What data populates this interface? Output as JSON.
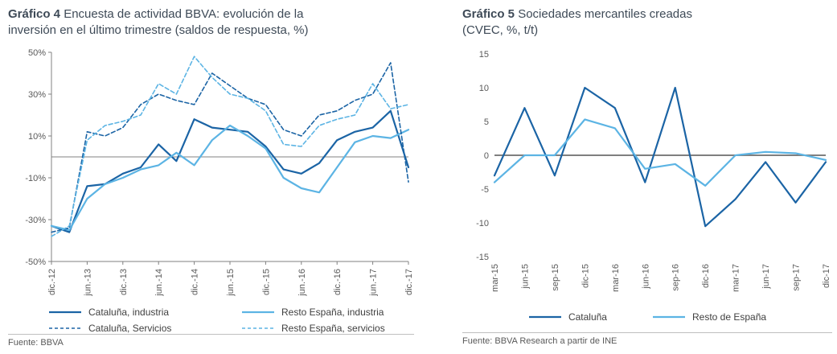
{
  "page": {
    "background": "#ffffff"
  },
  "colors": {
    "dark_blue": "#1b64a5",
    "light_blue": "#5cb4e4",
    "axis_label_gray": "#595959",
    "zero_line_gray": "#9b9b9b",
    "title_text": "#3e4a57"
  },
  "chart_data": [
    {
      "type": "line",
      "title": "Gráfico 4 Encuesta de actividad BBVA: evolución de la inversión en el último trimestre (saldos de respuesta, %)",
      "title_bold": "Gráfico 4",
      "title_rest": "Encuesta de actividad BBVA: evolución de la\ninversión en el último trimestre (saldos de respuesta, %)",
      "x": [
        "dic.-12",
        "mar.-13",
        "jun.-13",
        "sep.-13",
        "dic.-13",
        "mar.-14",
        "jun.-14",
        "sep.-14",
        "dic.-14",
        "mar.-15",
        "jun.-15",
        "sep.-15",
        "dic.-15",
        "mar.-16",
        "jun.-16",
        "sep.-16",
        "dic.-16",
        "mar.-17",
        "jun.-17",
        "sep.-17",
        "dic.-17"
      ],
      "x_labels_shown": [
        "dic.-12",
        "jun.-13",
        "dic.-13",
        "jun.-14",
        "dic.-14",
        "jun.-15",
        "dic.-15",
        "jun.-16",
        "dic.-16",
        "jun.-17",
        "dic.-17"
      ],
      "label_every": 2,
      "ylim": [
        -50,
        50
      ],
      "yticks": [
        50,
        30,
        10,
        -10,
        -30,
        -50
      ],
      "ytick_suffix": "%",
      "grid": "zero-line-only",
      "legend_position": "bottom",
      "series": [
        {
          "name": "Cataluña, industria",
          "color": "#1b64a5",
          "dash": false,
          "values": [
            -33,
            -36,
            -14,
            -13,
            -8,
            -5,
            6,
            -2,
            18,
            14,
            13,
            12,
            5,
            -6,
            -8,
            -3,
            8,
            12,
            14,
            22,
            -5
          ]
        },
        {
          "name": "Resto España, industria",
          "color": "#5cb4e4",
          "dash": false,
          "values": [
            -33,
            -35,
            -20,
            -13,
            -10,
            -6,
            -4,
            2,
            -4,
            8,
            15,
            10,
            4,
            -10,
            -15,
            -17,
            -5,
            7,
            10,
            9,
            13
          ]
        },
        {
          "name": "Cataluña, Servicios",
          "color": "#1b64a5",
          "dash": true,
          "values": [
            -36,
            -34,
            12,
            10,
            14,
            25,
            30,
            27,
            25,
            40,
            34,
            28,
            25,
            13,
            10,
            20,
            22,
            27,
            30,
            45,
            -12
          ]
        },
        {
          "name": "Resto España, servicios",
          "color": "#5cb4e4",
          "dash": true,
          "values": [
            -38,
            -33,
            8,
            15,
            17,
            20,
            35,
            30,
            48,
            38,
            30,
            28,
            22,
            6,
            5,
            15,
            18,
            20,
            35,
            23,
            25
          ]
        }
      ],
      "source": "Fuente: BBVA"
    },
    {
      "type": "line",
      "title": "Gráfico 5 Sociedades mercantiles creadas (CVEC, %, t/t)",
      "title_bold": "Gráfico 5",
      "title_rest": "Sociedades mercantiles creadas\n(CVEC, %, t/t)",
      "x": [
        "mar-15",
        "jun-15",
        "sep-15",
        "dic-15",
        "mar-16",
        "jun-16",
        "sep-16",
        "dic-16",
        "mar-17",
        "jun-17",
        "sep-17",
        "dic-17"
      ],
      "label_every": 1,
      "ylim": [
        -15,
        15
      ],
      "yticks": [
        15,
        10,
        5,
        0,
        -5,
        -10,
        -15
      ],
      "ytick_suffix": "",
      "grid": "zero-line-only",
      "legend_position": "bottom",
      "series": [
        {
          "name": "Cataluña",
          "color": "#1b64a5",
          "dash": false,
          "values": [
            -3,
            7,
            -3,
            10,
            7,
            -4,
            10,
            -10.5,
            -6.5,
            -1,
            -7,
            -1
          ]
        },
        {
          "name": "Resto de España",
          "color": "#5cb4e4",
          "dash": false,
          "values": [
            -4,
            0,
            0,
            5.3,
            4,
            -2,
            -1.3,
            -4.5,
            0,
            0.5,
            0.3,
            -0.7
          ]
        }
      ],
      "source": "Fuente: BBVA Research a partir de INE"
    }
  ]
}
